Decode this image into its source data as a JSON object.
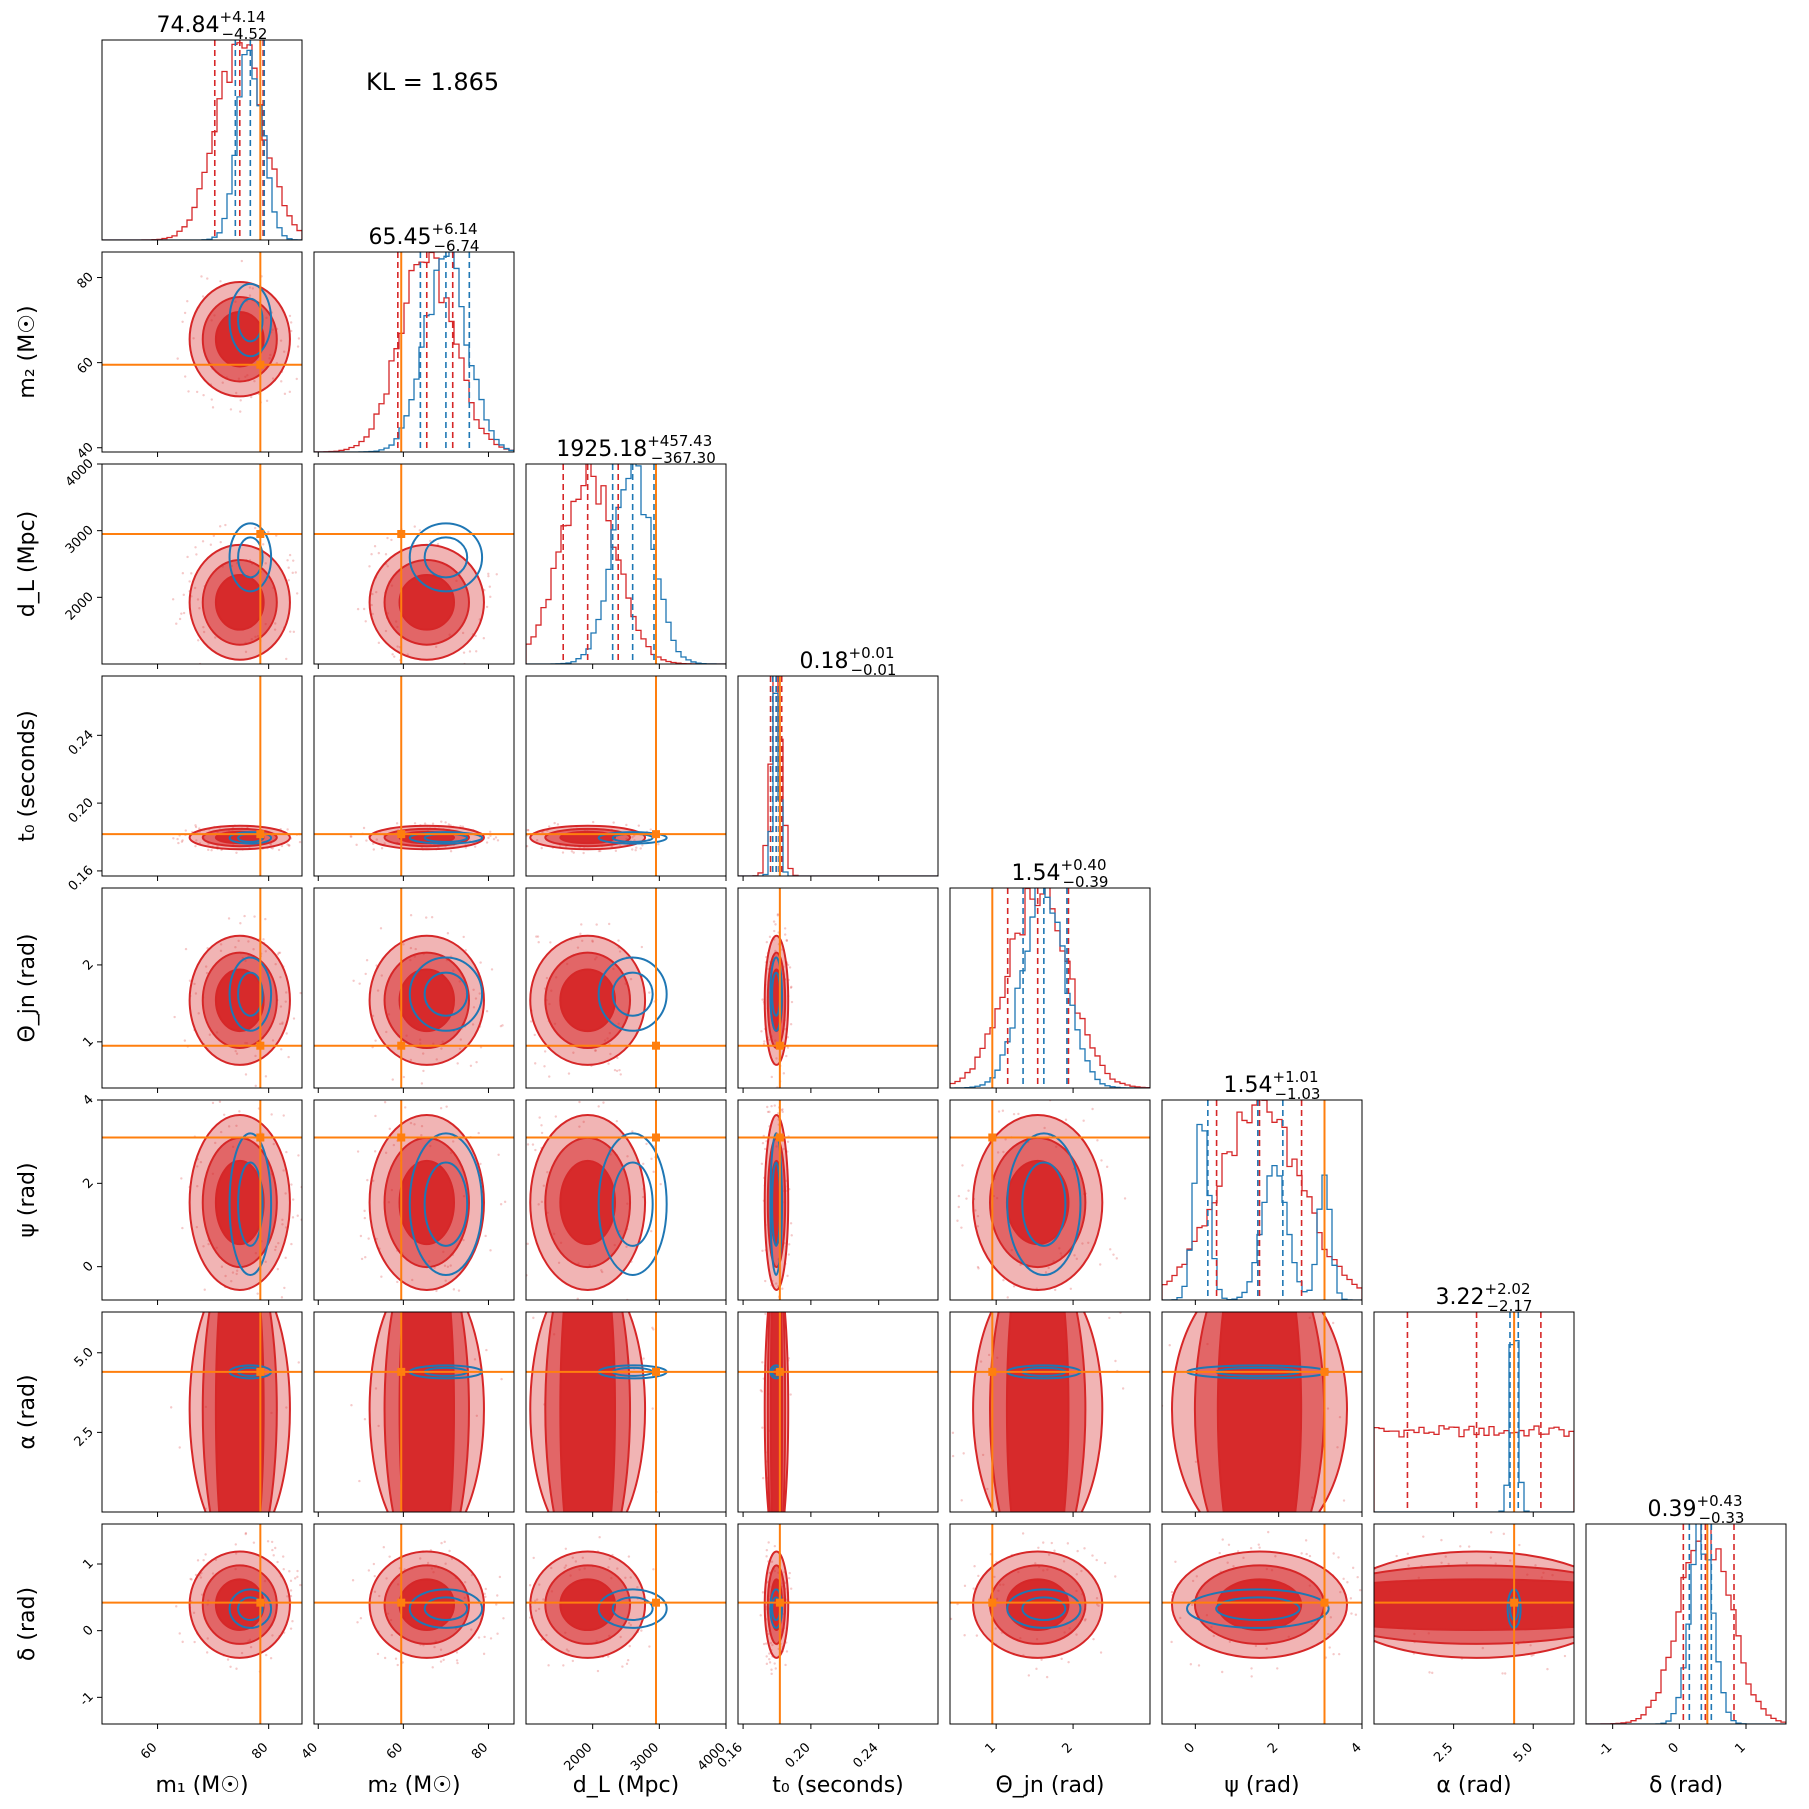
{
  "kl_text": "KL = 1.865",
  "colors": {
    "posterior_red": "#d62728",
    "posterior_blue": "#1f77b4",
    "truth": "#ff7f0e"
  },
  "chart_data": {
    "type": "corner",
    "parameters": [
      {
        "label": "m1",
        "label_text": "m₁ (M☉)",
        "unit": "M☉",
        "range": [
          50,
          86
        ],
        "ticks": [
          60,
          80
        ],
        "truth": 78.5,
        "title": {
          "median": "74.84",
          "plus": "+4.14",
          "minus": "−4.52"
        },
        "red": {
          "q16": 70.3,
          "q50": 74.8,
          "q84": 79.0,
          "sigma": 4.3
        },
        "blue": {
          "q16": 74.0,
          "q50": 76.7,
          "q84": 79.2,
          "sigma": 2.2
        }
      },
      {
        "label": "m2",
        "label_text": "m₂ (M☉)",
        "unit": "M☉",
        "range": [
          39,
          86
        ],
        "ticks": [
          40,
          60,
          80
        ],
        "truth": 59.5,
        "title": {
          "median": "65.45",
          "plus": "+6.14",
          "minus": "−6.74"
        },
        "red": {
          "q16": 58.7,
          "q50": 65.5,
          "q84": 71.6,
          "sigma": 6.4
        },
        "blue": {
          "q16": 64.0,
          "q50": 70.0,
          "q84": 75.5,
          "sigma": 5.0
        }
      },
      {
        "label": "dL",
        "label_text": "d_L (Mpc)",
        "unit": "Mpc",
        "range": [
          1000,
          4000
        ],
        "ticks": [
          2000,
          3000,
          4000
        ],
        "truth": 2950,
        "title": {
          "median": "1925.18",
          "plus": "+457.43",
          "minus": "−367.30"
        },
        "red": {
          "q16": 1558,
          "q50": 1925,
          "q84": 2383,
          "sigma": 410
        },
        "blue": {
          "q16": 2300,
          "q50": 2600,
          "q84": 2920,
          "sigma": 300
        }
      },
      {
        "label": "t0",
        "label_text": "t₀ (seconds)",
        "unit": "seconds",
        "range": [
          0.157,
          0.275
        ],
        "ticks": [
          0.16,
          0.2,
          0.24
        ],
        "truth": 0.1817,
        "title": {
          "median": "0.18",
          "plus": "+0.01",
          "minus": "−0.01"
        },
        "red": {
          "q16": 0.1762,
          "q50": 0.1797,
          "q84": 0.1828,
          "sigma": 0.0033
        },
        "blue": {
          "q16": 0.1775,
          "q50": 0.1795,
          "q84": 0.1812,
          "sigma": 0.002
        }
      },
      {
        "label": "theta_jn",
        "label_text": "Θ_jn (rad)",
        "unit": "rad",
        "range": [
          0.4,
          3.0
        ],
        "ticks": [
          1,
          2
        ],
        "truth": 0.95,
        "title": {
          "median": "1.54",
          "plus": "+0.40",
          "minus": "−0.39"
        },
        "red": {
          "q16": 1.15,
          "q50": 1.54,
          "q84": 1.94,
          "sigma": 0.4
        },
        "blue": {
          "q16": 1.35,
          "q50": 1.62,
          "q84": 1.92,
          "sigma": 0.28
        }
      },
      {
        "label": "psi",
        "label_text": "ψ (rad)",
        "unit": "rad",
        "range": [
          -0.8,
          4.0
        ],
        "ticks": [
          0,
          2,
          4
        ],
        "truth": 3.1,
        "title": {
          "median": "1.54",
          "plus": "+1.01",
          "minus": "−1.03"
        },
        "red": {
          "q16": 0.51,
          "q50": 1.54,
          "q84": 2.55,
          "sigma": 1.0
        },
        "blue": {
          "q16": 0.3,
          "q50": 1.5,
          "q84": 2.1,
          "sigma": 1.0
        }
      },
      {
        "label": "alpha",
        "label_text": "α (rad)",
        "unit": "rad",
        "range": [
          0,
          6.28
        ],
        "ticks": [
          2.5,
          5.0
        ],
        "truth": 4.4,
        "title": {
          "median": "3.22",
          "plus": "+2.02",
          "minus": "−2.17"
        },
        "red": {
          "q16": 1.05,
          "q50": 3.22,
          "q84": 5.24,
          "sigma": 1.8
        },
        "blue": {
          "q16": 4.27,
          "q50": 4.4,
          "q84": 4.53,
          "sigma": 0.12
        }
      },
      {
        "label": "delta",
        "label_text": "δ (rad)",
        "unit": "rad",
        "range": [
          -1.4,
          1.6
        ],
        "ticks": [
          -1,
          0,
          1
        ],
        "truth": 0.42,
        "title": {
          "median": "0.39",
          "plus": "+0.43",
          "minus": "−0.33"
        },
        "red": {
          "q16": 0.06,
          "q50": 0.39,
          "q84": 0.82,
          "sigma": 0.38
        },
        "blue": {
          "q16": 0.15,
          "q50": 0.33,
          "q84": 0.48,
          "sigma": 0.17
        }
      }
    ]
  }
}
